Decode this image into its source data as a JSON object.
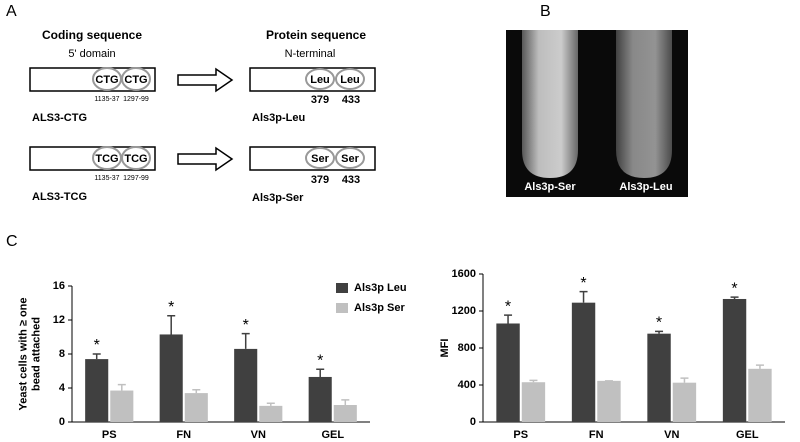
{
  "panel_labels": [
    "A",
    "B",
    "C"
  ],
  "panel_a": {
    "left_title": "Coding sequence",
    "left_subtitle": "5' domain",
    "right_title": "Protein sequence",
    "right_subtitle": "N-terminal",
    "rows": [
      {
        "codons": [
          "CTG",
          "CTG"
        ],
        "positions": [
          "1135-37",
          "1297-99"
        ],
        "gene": "ALS3-CTG",
        "residues": [
          "Leu",
          "Leu"
        ],
        "residue_numbers": [
          379,
          433
        ],
        "protein": "Als3p-Leu"
      },
      {
        "codons": [
          "TCG",
          "TCG"
        ],
        "positions": [
          "1135-37",
          "1297-99"
        ],
        "gene": "ALS3-TCG",
        "residues": [
          "Ser",
          "Ser"
        ],
        "residue_numbers": [
          379,
          433
        ],
        "protein": "Als3p-Ser"
      }
    ]
  },
  "panel_b": {
    "tube_labels": [
      "Als3p-Ser",
      "Als3p-Leu"
    ]
  },
  "chart_data": [
    {
      "type": "bar",
      "ylabel": [
        "Yeast cells with ≥ one",
        "bead attached"
      ],
      "categories": [
        "PS",
        "FN",
        "VN",
        "GEL"
      ],
      "series": [
        {
          "name": "Als3p Leu",
          "color": "#404040",
          "values": [
            7.4,
            10.3,
            8.6,
            5.3
          ],
          "errors": [
            0.6,
            2.2,
            1.8,
            0.9
          ],
          "annotations": [
            "*",
            "*",
            "*",
            "*"
          ]
        },
        {
          "name": "Als3p Ser",
          "color": "#c0c0c0",
          "values": [
            3.7,
            3.4,
            1.9,
            2.0
          ],
          "errors": [
            0.7,
            0.4,
            0.3,
            0.6
          ]
        }
      ],
      "ylim": [
        0,
        16
      ],
      "yticks": [
        0,
        4,
        8,
        12,
        16
      ],
      "legend": "upper right"
    },
    {
      "type": "bar",
      "ylabel": [
        "MFI"
      ],
      "categories": [
        "PS",
        "FN",
        "VN",
        "GEL"
      ],
      "series": [
        {
          "name": "Als3p Leu",
          "color": "#404040",
          "values": [
            1065,
            1290,
            955,
            1330
          ],
          "errors": [
            90,
            120,
            25,
            20
          ],
          "annotations": [
            "*",
            "*",
            "*",
            "*"
          ]
        },
        {
          "name": "Als3p Ser",
          "color": "#c0c0c0",
          "values": [
            430,
            445,
            425,
            575
          ],
          "errors": [
            20,
            0,
            50,
            40
          ]
        }
      ],
      "ylim": [
        0,
        1600
      ],
      "yticks": [
        0,
        400,
        800,
        1200,
        1600
      ]
    }
  ]
}
